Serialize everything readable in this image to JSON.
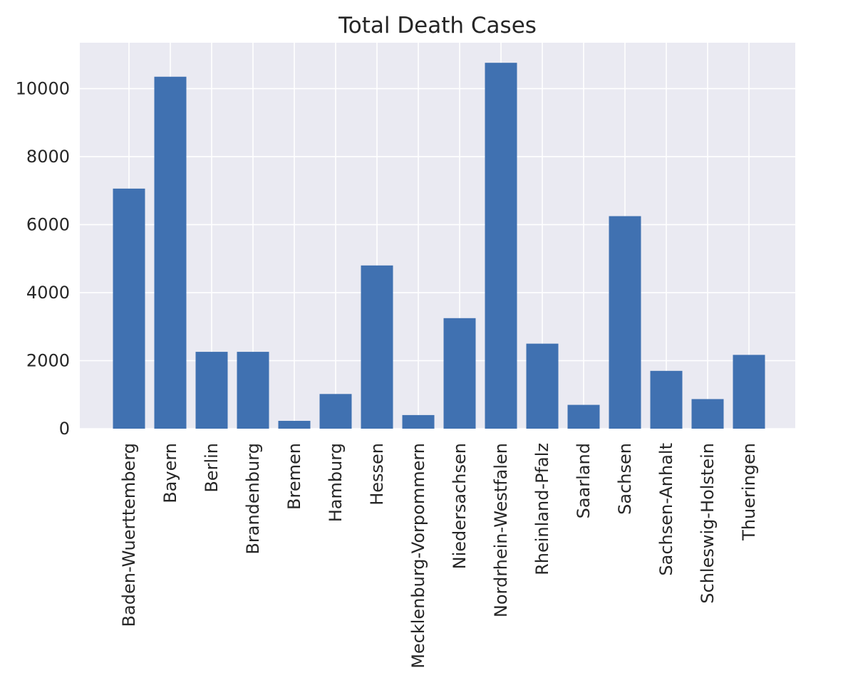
{
  "colors": {
    "plot_background": "#eaeaf2",
    "bar": "#4071b1",
    "grid": "#ffffff",
    "text": "#262626",
    "page_background": "#ffffff"
  },
  "chart_data": {
    "type": "bar",
    "title": "Total Death Cases",
    "xlabel": "",
    "ylabel": "",
    "categories": [
      "Baden-Wuerttemberg",
      "Bayern",
      "Berlin",
      "Brandenburg",
      "Bremen",
      "Hamburg",
      "Hessen",
      "Mecklenburg-Vorpommern",
      "Niedersachsen",
      "Nordrhein-Westfalen",
      "Rheinland-Pfalz",
      "Saarland",
      "Sachsen",
      "Sachsen-Anhalt",
      "Schleswig-Holstein",
      "Thueringen"
    ],
    "values": [
      7060,
      10350,
      2260,
      2260,
      230,
      1020,
      4800,
      400,
      3250,
      10760,
      2500,
      700,
      6250,
      1700,
      870,
      2170
    ],
    "ylim": [
      0,
      11350
    ],
    "yticks": [
      0,
      2000,
      4000,
      6000,
      8000,
      10000
    ],
    "ytick_labels": [
      "0",
      "2000",
      "4000",
      "6000",
      "8000",
      "10000"
    ],
    "grid": true,
    "legend": "none",
    "x_tick_rotation": "vertical"
  }
}
